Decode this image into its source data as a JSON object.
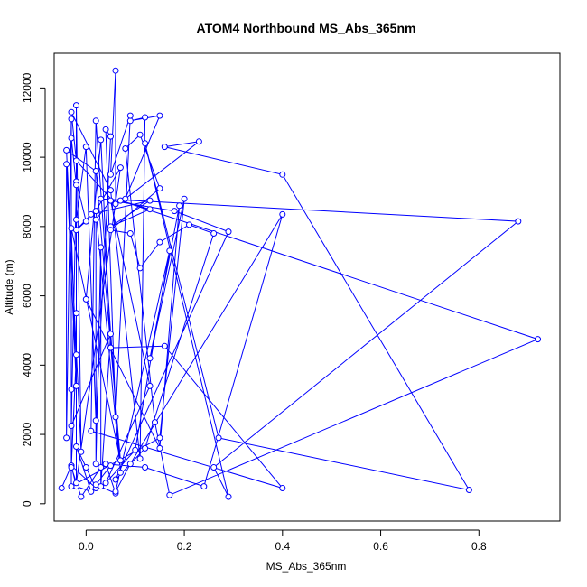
{
  "chart_data": {
    "type": "line",
    "title": "ATOM4 Northbound MS_Abs_365nm",
    "xlabel": "MS_Abs_365nm",
    "ylabel": "Altitude (m)",
    "xlim": [
      -0.065,
      0.965
    ],
    "ylim": [
      -500,
      13000
    ],
    "x_ticks": [
      0.0,
      0.2,
      0.4,
      0.6,
      0.8
    ],
    "x_tick_labels": [
      "0.0",
      "0.2",
      "0.4",
      "0.6",
      "0.8"
    ],
    "y_ticks": [
      0,
      2000,
      4000,
      6000,
      8000,
      10000,
      12000
    ],
    "y_tick_labels": [
      "0",
      "2000",
      "4000",
      "6000",
      "8000",
      "10000",
      "12000"
    ],
    "grid": false,
    "legend": "none",
    "series": [
      {
        "color": "#0000ff",
        "marker": "open-circle",
        "points": [
          [
            -0.05,
            450
          ],
          [
            -0.03,
            1100
          ],
          [
            -0.02,
            500
          ],
          [
            0.01,
            350
          ],
          [
            -0.02,
            1650
          ],
          [
            0.0,
            1050
          ],
          [
            0.02,
            450
          ],
          [
            -0.03,
            1100
          ],
          [
            -0.02,
            4300
          ],
          [
            -0.03,
            1050
          ],
          [
            -0.01,
            200
          ],
          [
            0.03,
            1050
          ],
          [
            0.05,
            1100
          ],
          [
            0.02,
            550
          ],
          [
            0.06,
            300
          ],
          [
            0.04,
            1150
          ],
          [
            0.12,
            1050
          ],
          [
            0.24,
            500
          ],
          [
            0.4,
            8350
          ],
          [
            0.09,
            1150
          ],
          [
            0.06,
            350
          ],
          [
            0.17,
            7300
          ],
          [
            0.1,
            1550
          ],
          [
            0.04,
            600
          ],
          [
            0.13,
            3400
          ],
          [
            0.05,
            8750
          ],
          [
            0.02,
            8200
          ],
          [
            0.02,
            1150
          ],
          [
            0.03,
            7400
          ],
          [
            0.03,
            500
          ],
          [
            0.05,
            4900
          ],
          [
            -0.03,
            2250
          ],
          [
            -0.02,
            9300
          ],
          [
            0.0,
            8150
          ],
          [
            -0.02,
            7900
          ],
          [
            0.01,
            8350
          ],
          [
            0.13,
            8750
          ],
          [
            0.05,
            8000
          ],
          [
            0.13,
            8500
          ],
          [
            0.07,
            8750
          ],
          [
            0.92,
            4750
          ],
          [
            0.17,
            250
          ],
          [
            0.14,
            2350
          ],
          [
            0.08,
            10250
          ],
          [
            0.11,
            10650
          ],
          [
            0.15,
            9100
          ],
          [
            0.05,
            7900
          ],
          [
            0.09,
            7800
          ],
          [
            0.11,
            6800
          ],
          [
            0.15,
            7550
          ],
          [
            0.21,
            8050
          ],
          [
            0.26,
            7800
          ],
          [
            0.12,
            1600
          ],
          [
            0.06,
            700
          ],
          [
            0.29,
            7850
          ],
          [
            0.18,
            8450
          ],
          [
            0.03,
            8800
          ],
          [
            0.88,
            8150
          ],
          [
            0.26,
            1050
          ],
          [
            0.29,
            200
          ],
          [
            0.12,
            10400
          ],
          [
            0.27,
            1900
          ],
          [
            0.78,
            400
          ],
          [
            0.4,
            9500
          ],
          [
            0.16,
            10300
          ],
          [
            0.23,
            10450
          ],
          [
            0.08,
            8800
          ],
          [
            0.15,
            11200
          ],
          [
            0.09,
            11050
          ],
          [
            0.12,
            11150
          ],
          [
            0.11,
            1300
          ],
          [
            0.05,
            9050
          ],
          [
            -0.03,
            11300
          ],
          [
            -0.02,
            9900
          ],
          [
            0.06,
            8650
          ],
          [
            0.06,
            12500
          ],
          [
            0.05,
            9500
          ],
          [
            0.09,
            11200
          ],
          [
            0.06,
            2500
          ],
          [
            0.04,
            10800
          ],
          [
            0.05,
            10600
          ],
          [
            0.02,
            2400
          ],
          [
            0.0,
            10300
          ],
          [
            -0.02,
            8200
          ],
          [
            -0.02,
            11500
          ],
          [
            -0.01,
            1500
          ],
          [
            -0.04,
            10200
          ],
          [
            0.02,
            9600
          ],
          [
            0.07,
            1250
          ],
          [
            -0.03,
            7950
          ],
          [
            -0.02,
            3400
          ],
          [
            -0.04,
            9800
          ],
          [
            -0.04,
            1900
          ],
          [
            -0.03,
            11100
          ],
          [
            -0.03,
            500
          ],
          [
            0.15,
            1900
          ],
          [
            0.2,
            8800
          ],
          [
            0.13,
            4200
          ],
          [
            0.19,
            8600
          ],
          [
            0.15,
            1600
          ],
          [
            0.0,
            5900
          ],
          [
            0.03,
            10500
          ],
          [
            0.05,
            4500
          ],
          [
            0.16,
            4550
          ],
          [
            0.4,
            450
          ],
          [
            0.01,
            2100
          ],
          [
            0.02,
            11050
          ],
          [
            0.07,
            900
          ],
          [
            0.02,
            8450
          ],
          [
            0.07,
            9700
          ],
          [
            -0.02,
            600
          ],
          [
            -0.02,
            5500
          ],
          [
            -0.02,
            9200
          ],
          [
            -0.03,
            10550
          ],
          [
            -0.03,
            3300
          ]
        ]
      }
    ]
  }
}
